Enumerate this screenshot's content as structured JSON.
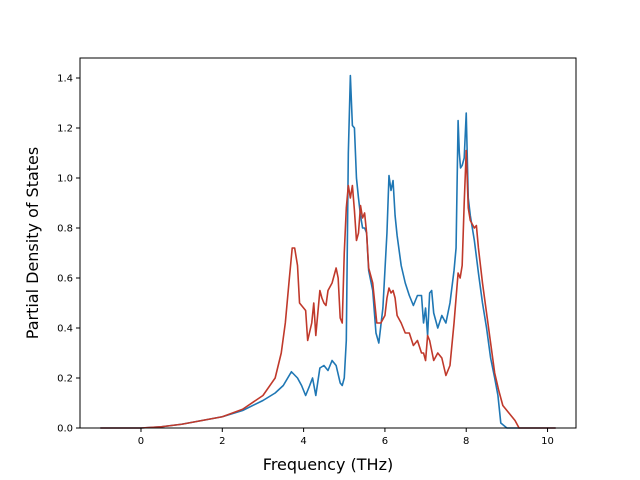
{
  "chart_data": {
    "type": "line",
    "title": "",
    "xlabel": "Frequency (THz)",
    "ylabel": "Partial Density of States",
    "xlim": [
      -1.5,
      10.7
    ],
    "ylim": [
      0,
      1.48
    ],
    "xticks": [
      0,
      2,
      4,
      6,
      8,
      10
    ],
    "yticks": [
      0.0,
      0.2,
      0.4,
      0.6,
      0.8,
      1.0,
      1.2,
      1.4
    ],
    "xtick_labels": [
      "0",
      "2",
      "4",
      "6",
      "8",
      "10"
    ],
    "ytick_labels": [
      "0.0",
      "0.2",
      "0.4",
      "0.6",
      "0.8",
      "1.0",
      "1.2",
      "1.4"
    ],
    "grid": false,
    "legend": "none",
    "series": [
      {
        "color": "#1f77b4",
        "x": [
          -1.0,
          0.0,
          0.5,
          1.0,
          1.5,
          2.0,
          2.5,
          3.0,
          3.3,
          3.5,
          3.7,
          3.85,
          3.95,
          4.05,
          4.15,
          4.22,
          4.3,
          4.4,
          4.5,
          4.6,
          4.7,
          4.8,
          4.9,
          4.95,
          5.0,
          5.05,
          5.1,
          5.15,
          5.2,
          5.25,
          5.3,
          5.35,
          5.4,
          5.45,
          5.5,
          5.55,
          5.6,
          5.7,
          5.78,
          5.85,
          5.95,
          6.05,
          6.1,
          6.15,
          6.2,
          6.25,
          6.3,
          6.4,
          6.5,
          6.6,
          6.7,
          6.8,
          6.9,
          6.95,
          7.0,
          7.05,
          7.1,
          7.15,
          7.2,
          7.3,
          7.4,
          7.5,
          7.6,
          7.7,
          7.75,
          7.8,
          7.83,
          7.86,
          7.9,
          7.95,
          8.0,
          8.05,
          8.1,
          8.2,
          8.3,
          8.4,
          8.5,
          8.6,
          8.7,
          8.78,
          8.85,
          9.0,
          10.2
        ],
        "y": [
          0.0,
          0.0,
          0.005,
          0.015,
          0.03,
          0.045,
          0.07,
          0.11,
          0.14,
          0.17,
          0.225,
          0.2,
          0.17,
          0.13,
          0.17,
          0.2,
          0.13,
          0.24,
          0.25,
          0.23,
          0.27,
          0.25,
          0.18,
          0.17,
          0.2,
          0.35,
          1.1,
          1.41,
          1.21,
          1.2,
          1.0,
          0.92,
          0.85,
          0.8,
          0.8,
          0.78,
          0.63,
          0.55,
          0.38,
          0.34,
          0.48,
          0.78,
          1.01,
          0.95,
          0.99,
          0.85,
          0.77,
          0.65,
          0.58,
          0.53,
          0.49,
          0.53,
          0.53,
          0.42,
          0.48,
          0.37,
          0.54,
          0.55,
          0.46,
          0.4,
          0.45,
          0.42,
          0.5,
          0.63,
          0.72,
          1.23,
          1.1,
          1.04,
          1.05,
          1.08,
          1.26,
          0.92,
          0.85,
          0.75,
          0.62,
          0.5,
          0.4,
          0.28,
          0.2,
          0.13,
          0.02,
          0.0,
          0.0
        ]
      },
      {
        "color": "#c0392b",
        "x": [
          -1.0,
          0.0,
          0.5,
          1.0,
          1.5,
          2.0,
          2.5,
          3.0,
          3.3,
          3.45,
          3.55,
          3.65,
          3.72,
          3.78,
          3.85,
          3.9,
          4.0,
          4.05,
          4.1,
          4.2,
          4.25,
          4.3,
          4.4,
          4.45,
          4.5,
          4.55,
          4.6,
          4.7,
          4.8,
          4.85,
          4.9,
          4.95,
          5.0,
          5.05,
          5.1,
          5.15,
          5.2,
          5.25,
          5.3,
          5.35,
          5.4,
          5.45,
          5.5,
          5.55,
          5.6,
          5.7,
          5.8,
          5.9,
          6.0,
          6.05,
          6.1,
          6.15,
          6.2,
          6.25,
          6.3,
          6.4,
          6.5,
          6.6,
          6.7,
          6.8,
          6.9,
          6.95,
          7.0,
          7.05,
          7.1,
          7.2,
          7.3,
          7.4,
          7.5,
          7.6,
          7.7,
          7.8,
          7.85,
          7.9,
          7.95,
          8.0,
          8.05,
          8.1,
          8.2,
          8.25,
          8.3,
          8.4,
          8.5,
          8.6,
          8.7,
          8.8,
          8.9,
          9.0,
          9.1,
          9.2,
          9.3,
          10.2
        ],
        "y": [
          0.0,
          0.0,
          0.005,
          0.015,
          0.03,
          0.045,
          0.075,
          0.13,
          0.2,
          0.3,
          0.42,
          0.6,
          0.72,
          0.72,
          0.65,
          0.5,
          0.48,
          0.47,
          0.35,
          0.42,
          0.5,
          0.37,
          0.55,
          0.52,
          0.5,
          0.49,
          0.55,
          0.58,
          0.64,
          0.6,
          0.44,
          0.42,
          0.7,
          0.88,
          0.97,
          0.92,
          0.97,
          0.87,
          0.75,
          0.78,
          0.89,
          0.84,
          0.86,
          0.78,
          0.64,
          0.58,
          0.42,
          0.42,
          0.45,
          0.52,
          0.56,
          0.54,
          0.55,
          0.52,
          0.45,
          0.42,
          0.38,
          0.38,
          0.33,
          0.35,
          0.3,
          0.3,
          0.27,
          0.37,
          0.35,
          0.27,
          0.3,
          0.28,
          0.21,
          0.25,
          0.42,
          0.62,
          0.6,
          0.65,
          0.9,
          1.11,
          0.88,
          0.83,
          0.8,
          0.81,
          0.72,
          0.58,
          0.46,
          0.34,
          0.22,
          0.15,
          0.09,
          0.07,
          0.05,
          0.03,
          0.0,
          0.0
        ]
      }
    ]
  }
}
